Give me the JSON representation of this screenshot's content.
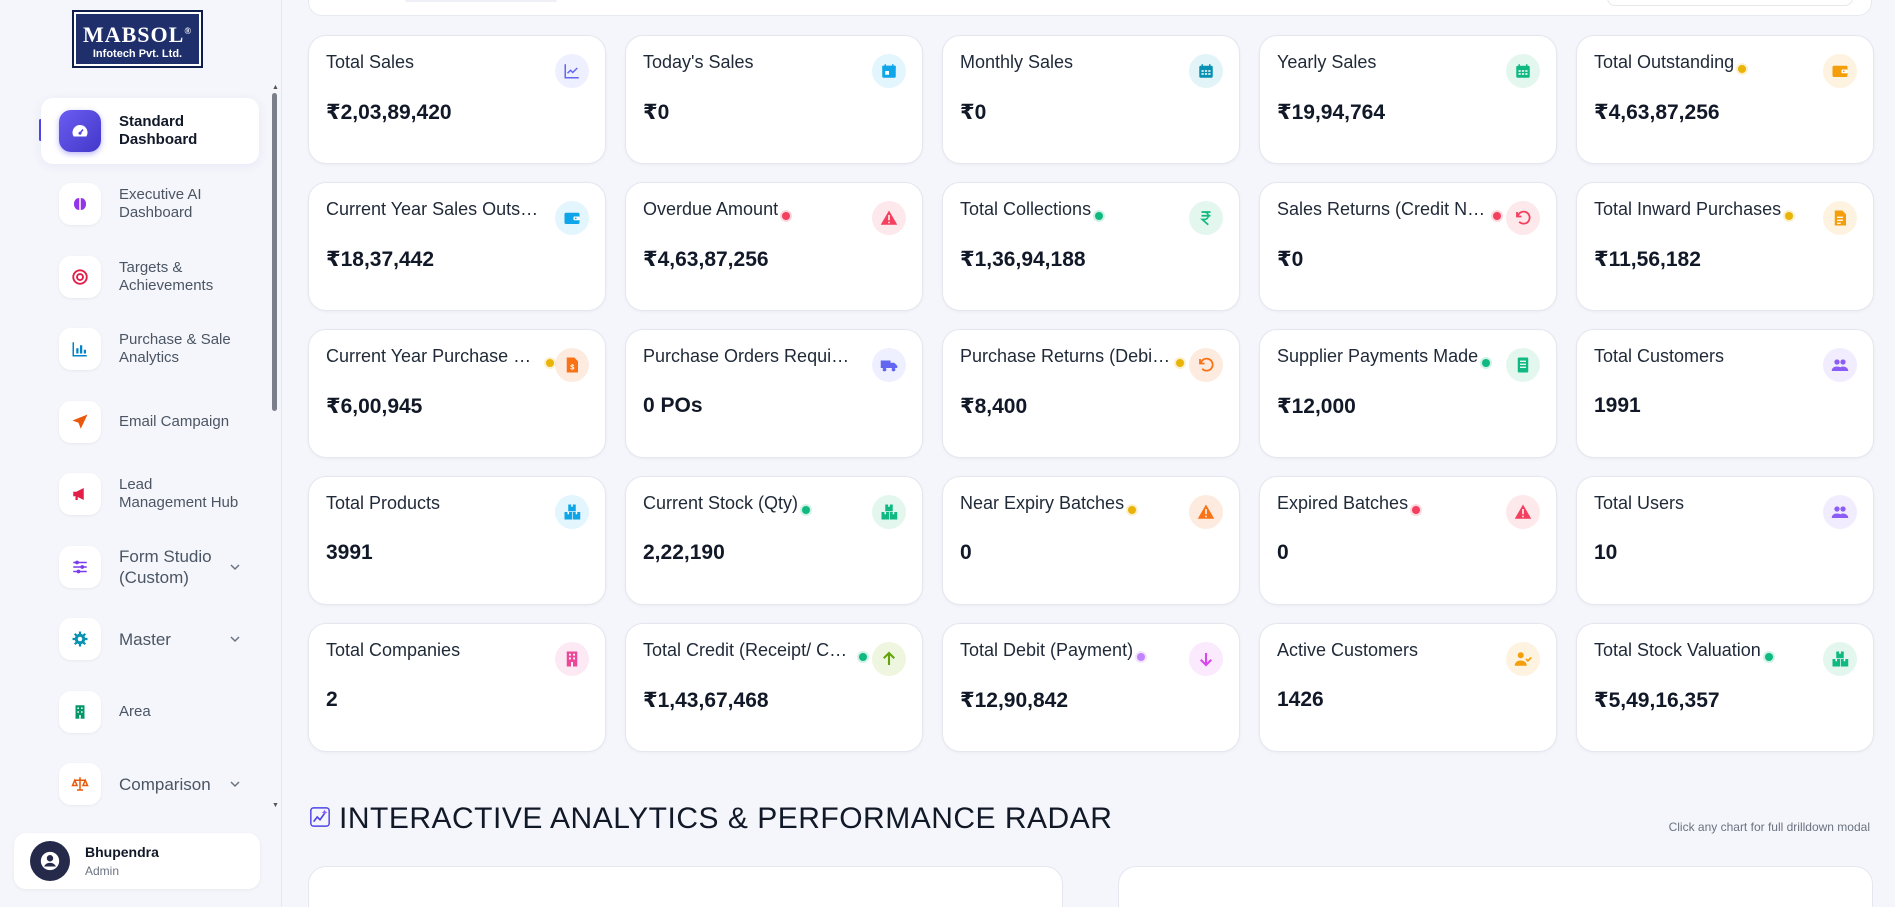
{
  "logo": {
    "brand": "MABSOL",
    "registered": "®",
    "subtitle": "Infotech Pvt. Ltd."
  },
  "sidebar": {
    "items": [
      {
        "label": "Standard Dashboard",
        "icon": "dashboard-gauge-icon",
        "active": true
      },
      {
        "label": "Executive AI Dashboard",
        "icon": "brain-icon"
      },
      {
        "label": "Targets & Achievements",
        "icon": "target-icon"
      },
      {
        "label": "Purchase & Sale Analytics",
        "icon": "bar-chart-icon"
      },
      {
        "label": "Email Campaign",
        "icon": "paper-plane-icon"
      },
      {
        "label": "Lead Management Hub",
        "icon": "megaphone-icon"
      },
      {
        "label": "Form Studio (Custom)",
        "icon": "sliders-icon",
        "expandable": true
      },
      {
        "label": "Master",
        "icon": "gear-icon",
        "expandable": true
      },
      {
        "label": "Area",
        "icon": "building-icon"
      },
      {
        "label": "Comparison",
        "icon": "scale-icon",
        "expandable": true
      }
    ]
  },
  "user": {
    "name": "Bhupendra",
    "role": "Admin"
  },
  "cards": [
    {
      "title": "Total Sales",
      "value": "₹2,03,89,420",
      "icon": "trend-chart-icon",
      "color": "#6366f1",
      "bg": "#eef0ff"
    },
    {
      "title": "Today's Sales",
      "value": "₹0",
      "icon": "calendar-day-icon",
      "color": "#0ea5e9",
      "bg": "#e3f5fd"
    },
    {
      "title": "Monthly Sales",
      "value": "₹0",
      "icon": "calendar-icon",
      "color": "#0891b2",
      "bg": "#e2f4f8"
    },
    {
      "title": "Yearly Sales",
      "value": "₹19,94,764",
      "icon": "calendar-icon",
      "color": "#10b981",
      "bg": "#e4f7ef"
    },
    {
      "title": "Total Outstanding",
      "value": "₹4,63,87,256",
      "icon": "wallet-icon",
      "color": "#f59e0b",
      "bg": "#fdf3e0",
      "dot": "#eab308"
    },
    {
      "title": "Current Year Sales Outstanding",
      "value": "₹18,37,442",
      "icon": "wallet-icon",
      "color": "#0ea5e9",
      "bg": "#e3f5fd"
    },
    {
      "title": "Overdue Amount",
      "value": "₹4,63,87,256",
      "icon": "warning-icon",
      "color": "#f43f5e",
      "bg": "#fde8ec",
      "dot": "#f43f5e"
    },
    {
      "title": "Total Collections",
      "value": "₹1,36,94,188",
      "icon": "rupee-icon",
      "color": "#10b981",
      "bg": "#e4f7ef",
      "dot": "#10b981"
    },
    {
      "title": "Sales Returns (Credit Notes)",
      "value": "₹0",
      "icon": "undo-icon",
      "color": "#f43f5e",
      "bg": "#fde8ec",
      "dot": "#f43f5e"
    },
    {
      "title": "Total Inward Purchases",
      "value": "₹11,56,182",
      "icon": "document-icon",
      "color": "#f59e0b",
      "bg": "#fdf3e0",
      "dot": "#eab308"
    },
    {
      "title": "Current Year Purchase Outstanding",
      "value": "₹6,00,945",
      "icon": "invoice-icon",
      "color": "#f97316",
      "bg": "#fdebe0",
      "dot": "#eab308"
    },
    {
      "title": "Purchase Orders Requisitions",
      "value": "0 POs",
      "icon": "truck-icon",
      "color": "#6366f1",
      "bg": "#eef0ff"
    },
    {
      "title": "Purchase Returns (Debit Notes)",
      "value": "₹8,400",
      "icon": "undo-icon",
      "color": "#f97316",
      "bg": "#fdebe0",
      "dot": "#eab308"
    },
    {
      "title": "Supplier Payments Made",
      "value": "₹12,000",
      "icon": "receipt-icon",
      "color": "#10b981",
      "bg": "#e4f7ef",
      "dot": "#10b981"
    },
    {
      "title": "Total Customers",
      "value": "1991",
      "icon": "users-icon",
      "color": "#8b5cf6",
      "bg": "#f1ecfe"
    },
    {
      "title": "Total Products",
      "value": "3991",
      "icon": "boxes-icon",
      "color": "#0ea5e9",
      "bg": "#e3f5fd"
    },
    {
      "title": "Current Stock (Qty)",
      "value": "2,22,190",
      "icon": "boxes-icon",
      "color": "#10b981",
      "bg": "#e4f7ef",
      "dot": "#10b981"
    },
    {
      "title": "Near Expiry Batches",
      "value": "0",
      "icon": "warning-icon",
      "color": "#f97316",
      "bg": "#fdebe0",
      "dot": "#eab308"
    },
    {
      "title": "Expired Batches",
      "value": "0",
      "icon": "warning-icon",
      "color": "#f43f5e",
      "bg": "#fde8ec",
      "dot": "#f43f5e"
    },
    {
      "title": "Total Users",
      "value": "10",
      "icon": "users-icon",
      "color": "#8b5cf6",
      "bg": "#f1ecfe"
    },
    {
      "title": "Total Companies",
      "value": "2",
      "icon": "building-icon",
      "color": "#ec4899",
      "bg": "#fde9f3"
    },
    {
      "title": "Total Credit (Receipt/ Collections)",
      "value": "₹1,43,67,468",
      "icon": "arrow-up-icon",
      "color": "#65a30d",
      "bg": "#eef6e0",
      "dot": "#10b981"
    },
    {
      "title": "Total Debit (Payment)",
      "value": "₹12,90,842",
      "icon": "arrow-down-icon",
      "color": "#d946ef",
      "bg": "#fbe9fd",
      "dot": "#c084fc"
    },
    {
      "title": "Active Customers",
      "value": "1426",
      "icon": "user-check-icon",
      "color": "#f59e0b",
      "bg": "#fdf3e0"
    },
    {
      "title": "Total Stock Valuation",
      "value": "₹5,49,16,357",
      "icon": "boxes-icon",
      "color": "#10b981",
      "bg": "#e4f7ef",
      "dot": "#10b981"
    }
  ],
  "section": {
    "title": "INTERACTIVE ANALYTICS & PERFORMANCE RADAR",
    "icon": "sparkle-chart-icon",
    "hint": "Click any chart for full drilldown modal"
  }
}
